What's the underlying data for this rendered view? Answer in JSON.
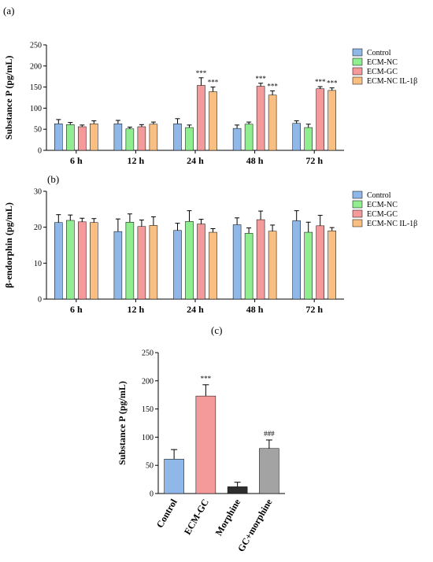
{
  "panel_labels": [
    "(a)",
    "(b)",
    "(c)"
  ],
  "colors": {
    "Control": "#8fb8e8",
    "ECM-NC": "#90ee90",
    "ECM-GC": "#f59a9a",
    "ECM-NC IL-1β": "#f9bf82",
    "Morphine": "#2e2e2e",
    "GC+morphine": "#a3a3a3",
    "axis": "#000000"
  },
  "chart_data": [
    {
      "type": "bar",
      "panel": "(a)",
      "ylabel": "Substance P (pg/mL)",
      "categories": [
        "6 h",
        "12 h",
        "24 h",
        "48 h",
        "72 h"
      ],
      "ylim": [
        0,
        250
      ],
      "yticks": [
        "0",
        "50",
        "100",
        "150",
        "200",
        "250"
      ],
      "legend_position": "right",
      "grid": false,
      "series": [
        {
          "name": "Control",
          "values": [
            63,
            63,
            63,
            52,
            64
          ],
          "errors": [
            10,
            8,
            12,
            8,
            6
          ]
        },
        {
          "name": "ECM-NC",
          "values": [
            61,
            51,
            54,
            62,
            54
          ],
          "errors": [
            5,
            4,
            6,
            5,
            8
          ]
        },
        {
          "name": "ECM-GC",
          "values": [
            56,
            56,
            154,
            152,
            146
          ],
          "errors": [
            4,
            5,
            18,
            7,
            5
          ]
        },
        {
          "name": "ECM-NC IL-1β",
          "values": [
            63,
            62,
            139,
            131,
            142
          ],
          "errors": [
            7,
            5,
            11,
            10,
            6
          ]
        }
      ],
      "annotations": [
        {
          "category": "24 h",
          "series": "ECM-GC",
          "text": "***"
        },
        {
          "category": "24 h",
          "series": "ECM-NC IL-1β",
          "text": "***"
        },
        {
          "category": "48 h",
          "series": "ECM-GC",
          "text": "***"
        },
        {
          "category": "48 h",
          "series": "ECM-NC IL-1β",
          "text": "***"
        },
        {
          "category": "72 h",
          "series": "ECM-GC",
          "text": "***"
        },
        {
          "category": "72 h",
          "series": "ECM-NC IL-1β",
          "text": "***"
        }
      ]
    },
    {
      "type": "bar",
      "panel": "(b)",
      "ylabel": "β-endorphin (pg/mL)",
      "categories": [
        "6 h",
        "12 h",
        "24 h",
        "48 h",
        "72 h"
      ],
      "ylim": [
        0,
        30
      ],
      "yticks": [
        "0",
        "10",
        "20",
        "30"
      ],
      "legend_position": "right",
      "grid": false,
      "series": [
        {
          "name": "Control",
          "values": [
            21.3,
            18.8,
            19.1,
            20.7,
            21.8
          ],
          "errors": [
            2.2,
            3.5,
            2.0,
            1.9,
            2.8
          ]
        },
        {
          "name": "ECM-NC",
          "values": [
            21.9,
            21.4,
            21.6,
            18.3,
            18.6
          ],
          "errors": [
            1.5,
            2.3,
            3.0,
            1.5,
            2.8
          ]
        },
        {
          "name": "ECM-GC",
          "values": [
            21.5,
            20.2,
            20.9,
            22.1,
            20.4
          ],
          "errors": [
            1.0,
            1.8,
            1.3,
            2.4,
            2.9
          ]
        },
        {
          "name": "ECM-NC IL-1β",
          "values": [
            21.3,
            20.5,
            18.6,
            18.9,
            19.0
          ],
          "errors": [
            1.1,
            2.4,
            1.0,
            1.7,
            0.9
          ]
        }
      ],
      "annotations": []
    },
    {
      "type": "bar",
      "panel": "(c)",
      "ylabel": "Substance P (pg/mL)",
      "categories": [
        "Control",
        "ECM-GC",
        "Morphine",
        "GC+morphine"
      ],
      "ylim": [
        0,
        250
      ],
      "yticks": [
        "0",
        "50",
        "100",
        "150",
        "200",
        "250"
      ],
      "grid": false,
      "series": [
        {
          "values": [
            61,
            173,
            12,
            80
          ],
          "errors": [
            17,
            20,
            8,
            15
          ]
        }
      ],
      "annotations": [
        {
          "category": "ECM-GC",
          "text": "***"
        },
        {
          "category": "GC+morphine",
          "text": "###"
        }
      ]
    }
  ]
}
